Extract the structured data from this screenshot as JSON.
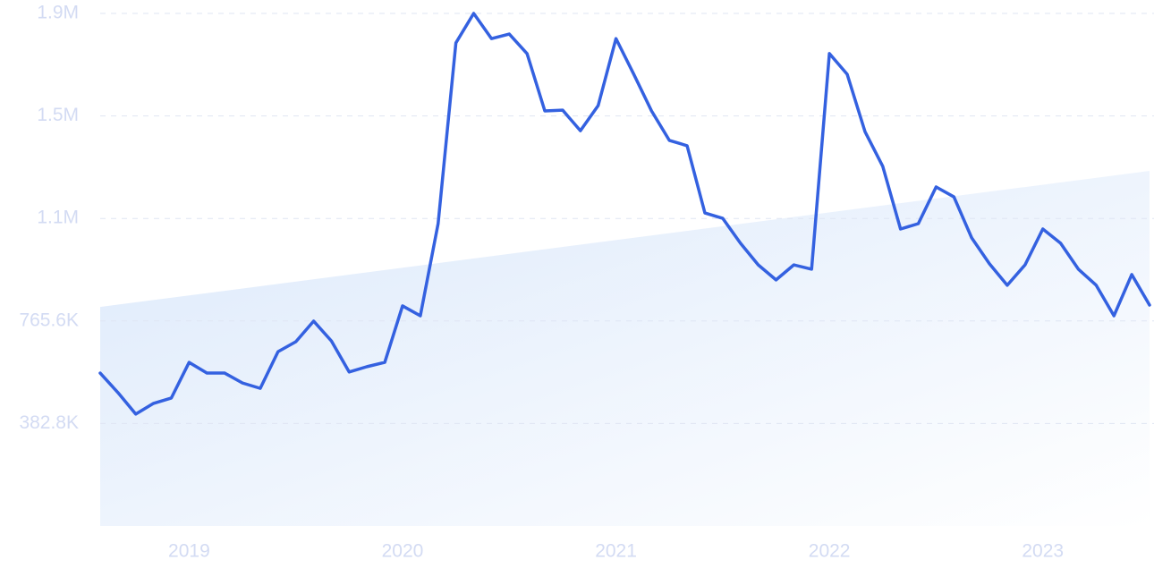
{
  "chart_data": {
    "type": "line",
    "categories": [
      null,
      null,
      null,
      null,
      null,
      "2019",
      null,
      null,
      null,
      null,
      null,
      null,
      null,
      null,
      null,
      null,
      null,
      "2020",
      null,
      null,
      null,
      null,
      null,
      null,
      null,
      null,
      null,
      null,
      null,
      "2021",
      null,
      null,
      null,
      null,
      null,
      null,
      null,
      null,
      null,
      null,
      null,
      "2022",
      null,
      null,
      null,
      null,
      null,
      null,
      null,
      null,
      null,
      null,
      null,
      "2023",
      null,
      null,
      null,
      null,
      null,
      null
    ],
    "values": [
      571000,
      498000,
      418000,
      458000,
      478000,
      611000,
      571000,
      571000,
      534000,
      514000,
      651000,
      688000,
      765000,
      691000,
      575000,
      595000,
      611000,
      822000,
      785000,
      1129000,
      1804000,
      1914000,
      1820000,
      1837000,
      1764000,
      1550000,
      1553000,
      1476000,
      1570000,
      1820000,
      1687000,
      1550000,
      1440000,
      1420000,
      1169000,
      1149000,
      1056000,
      975000,
      919000,
      975000,
      959000,
      1764000,
      1687000,
      1473000,
      1343000,
      1109000,
      1129000,
      1266000,
      1229000,
      1076000,
      979000,
      899000,
      975000,
      1109000,
      1056000,
      959000,
      899000,
      785000,
      939000,
      825000
    ],
    "color": "#3461e0",
    "trend": [
      818000,
      1326000
    ],
    "trend_color": "#dce9fb",
    "ylim": [
      0,
      1914000
    ],
    "yticks": [
      {
        "value": 382800,
        "label": "382.8K"
      },
      {
        "value": 765600,
        "label": "765.6K"
      },
      {
        "value": 1148400,
        "label": "1.1M"
      },
      {
        "value": 1531200,
        "label": "1.5M"
      },
      {
        "value": 1914000,
        "label": "1.9M"
      }
    ],
    "grid": true
  }
}
